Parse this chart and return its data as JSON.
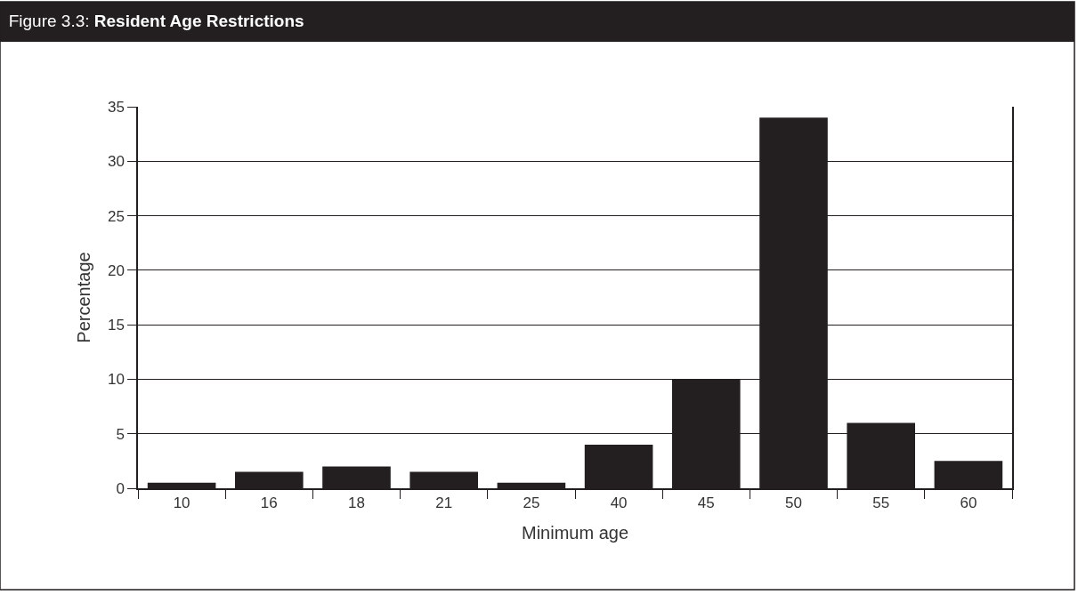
{
  "chart_data": {
    "type": "bar",
    "title": "Figure 3.3: Resident Age Restrictions",
    "xlabel": "Minimum age",
    "ylabel": "Percentage",
    "categories": [
      "10",
      "16",
      "18",
      "21",
      "25",
      "40",
      "45",
      "50",
      "55",
      "60"
    ],
    "values": [
      0.5,
      1.5,
      2,
      1.5,
      0.5,
      4,
      10,
      34,
      6,
      2.5
    ],
    "color": "#231f20",
    "ylim": [
      0,
      35
    ],
    "yticks": [
      0,
      5,
      10,
      15,
      20,
      25,
      30,
      35
    ],
    "grid": "y"
  }
}
